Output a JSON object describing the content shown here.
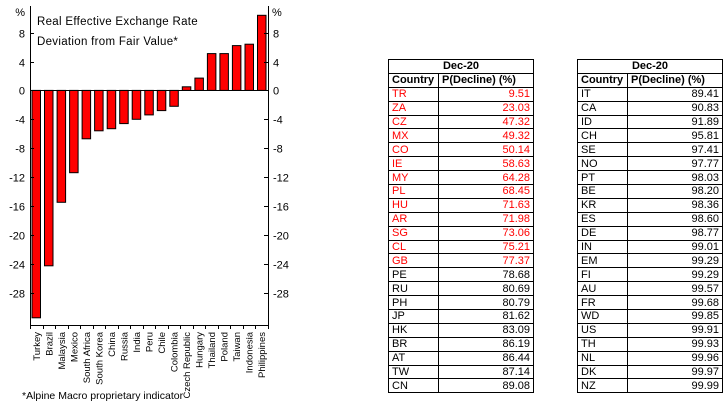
{
  "chart": {
    "unit_left": "%",
    "unit_right": "%",
    "title_line1": "Real Effective Exchange Rate",
    "title_line2": "Deviation from Fair Value*",
    "footnote": "*Alpine Macro proprietary indicator"
  },
  "chart_data": {
    "type": "bar",
    "title": "Real Effective Exchange Rate Deviation from Fair Value*",
    "xlabel": "",
    "ylabel": "%",
    "footnote": "*Alpine Macro proprietary indicator",
    "categories": [
      "Turkey",
      "Brazil",
      "Malaysia",
      "Mexico",
      "South Africa",
      "South Korea",
      "China",
      "Russia",
      "India",
      "Peru",
      "Chile",
      "Colombia",
      "Czech Republic",
      "Hungary",
      "Thailand",
      "Poland",
      "Taiwan",
      "Indonesia",
      "Philippines"
    ],
    "values": [
      -31.5,
      -24.3,
      -15.5,
      -11.4,
      -6.7,
      -5.6,
      -5.3,
      -4.6,
      -4.0,
      -3.4,
      -2.8,
      -2.2,
      0.5,
      1.7,
      5.1,
      5.1,
      6.2,
      6.4,
      10.4
    ],
    "yticks": [
      8,
      4,
      0,
      -4,
      -8,
      -12,
      -16,
      -20,
      -24,
      -28
    ],
    "ylim": [
      -32.5,
      11
    ],
    "grid": false,
    "legend": false,
    "bar_color": "#ff0000",
    "bar_stroke": "#000000"
  },
  "tables": [
    {
      "period": "Dec-20",
      "columns": [
        "Country",
        "P(Decline) (%)"
      ],
      "highlight_color": "#ff0000",
      "rows": [
        {
          "country": "TR",
          "value": "9.51",
          "red": true
        },
        {
          "country": "ZA",
          "value": "23.03",
          "red": true
        },
        {
          "country": "CZ",
          "value": "47.32",
          "red": true
        },
        {
          "country": "MX",
          "value": "49.32",
          "red": true
        },
        {
          "country": "CO",
          "value": "50.14",
          "red": true
        },
        {
          "country": "IE",
          "value": "58.63",
          "red": true
        },
        {
          "country": "MY",
          "value": "64.28",
          "red": true
        },
        {
          "country": "PL",
          "value": "68.45",
          "red": true
        },
        {
          "country": "HU",
          "value": "71.63",
          "red": true
        },
        {
          "country": "AR",
          "value": "71.98",
          "red": true
        },
        {
          "country": "SG",
          "value": "73.06",
          "red": true
        },
        {
          "country": "CL",
          "value": "75.21",
          "red": true
        },
        {
          "country": "GB",
          "value": "77.37",
          "red": true
        },
        {
          "country": "PE",
          "value": "78.68",
          "red": false
        },
        {
          "country": "RU",
          "value": "80.69",
          "red": false
        },
        {
          "country": "PH",
          "value": "80.79",
          "red": false
        },
        {
          "country": "JP",
          "value": "81.62",
          "red": false
        },
        {
          "country": "HK",
          "value": "83.09",
          "red": false
        },
        {
          "country": "BR",
          "value": "86.19",
          "red": false
        },
        {
          "country": "AT",
          "value": "86.44",
          "red": false
        },
        {
          "country": "TW",
          "value": "87.14",
          "red": false
        },
        {
          "country": "CN",
          "value": "89.08",
          "red": false
        }
      ]
    },
    {
      "period": "Dec-20",
      "columns": [
        "Country",
        "P(Decline) (%)"
      ],
      "highlight_color": "#ff0000",
      "rows": [
        {
          "country": "IT",
          "value": "89.41",
          "red": false
        },
        {
          "country": "CA",
          "value": "90.83",
          "red": false
        },
        {
          "country": "ID",
          "value": "91.89",
          "red": false
        },
        {
          "country": "CH",
          "value": "95.81",
          "red": false
        },
        {
          "country": "SE",
          "value": "97.41",
          "red": false
        },
        {
          "country": "NO",
          "value": "97.77",
          "red": false
        },
        {
          "country": "PT",
          "value": "98.03",
          "red": false
        },
        {
          "country": "BE",
          "value": "98.20",
          "red": false
        },
        {
          "country": "KR",
          "value": "98.36",
          "red": false
        },
        {
          "country": "ES",
          "value": "98.60",
          "red": false
        },
        {
          "country": "DE",
          "value": "98.77",
          "red": false
        },
        {
          "country": "IN",
          "value": "99.01",
          "red": false
        },
        {
          "country": "EM",
          "value": "99.29",
          "red": false
        },
        {
          "country": "FI",
          "value": "99.29",
          "red": false
        },
        {
          "country": "AU",
          "value": "99.57",
          "red": false
        },
        {
          "country": "FR",
          "value": "99.68",
          "red": false
        },
        {
          "country": "WD",
          "value": "99.85",
          "red": false
        },
        {
          "country": "US",
          "value": "99.91",
          "red": false
        },
        {
          "country": "TH",
          "value": "99.93",
          "red": false
        },
        {
          "country": "NL",
          "value": "99.96",
          "red": false
        },
        {
          "country": "DK",
          "value": "99.97",
          "red": false
        },
        {
          "country": "NZ",
          "value": "99.99",
          "red": false
        }
      ]
    }
  ]
}
